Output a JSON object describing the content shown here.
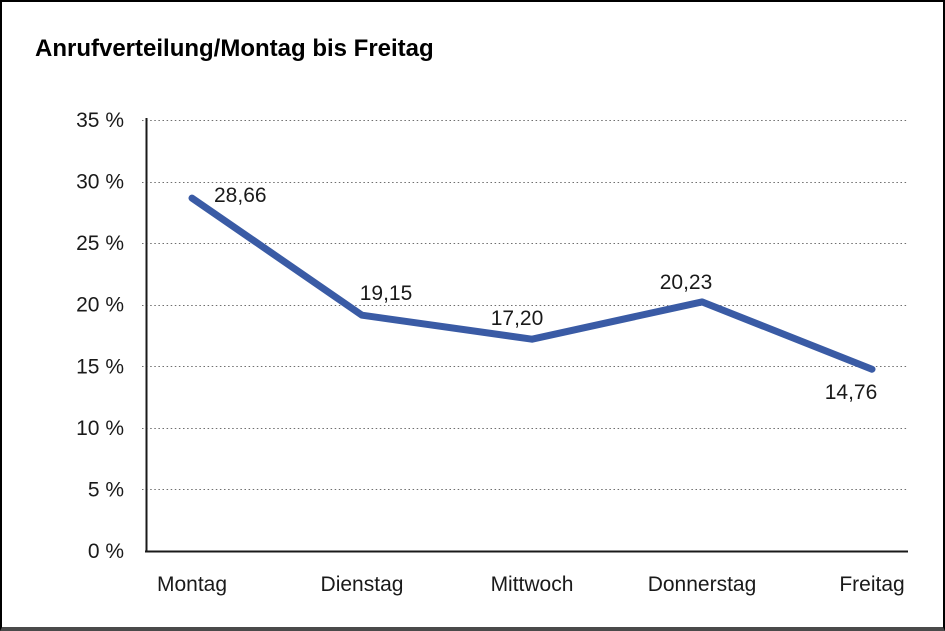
{
  "chart_data": {
    "type": "line",
    "title": "Anrufverteilung/Montag bis Freitag",
    "categories": [
      "Montag",
      "Dienstag",
      "Mittwoch",
      "Donnerstag",
      "Freitag"
    ],
    "values": [
      28.66,
      19.15,
      17.2,
      20.23,
      14.76
    ],
    "point_labels": [
      "28,66",
      "19,15",
      "17,20",
      "20,23",
      "14,76"
    ],
    "series_name": "Anrufverteilung",
    "xlabel": "",
    "ylabel": "",
    "y_tick_labels": [
      "35 %",
      "30 %",
      "25 %",
      "20 %",
      "15 %",
      "10 %",
      "5 %",
      "0 %"
    ],
    "ylim": [
      0,
      35
    ],
    "y_step": 5,
    "grid": "horizontal-dotted",
    "legend_position": "none",
    "colors": {
      "line": "#3A5BA5",
      "axis": "#1a1a1a",
      "gridline": "#6e6e6e",
      "text": "#1a1a1a",
      "title_text": "#000000",
      "background": "#ffffff",
      "frame_border": "#000000"
    }
  }
}
